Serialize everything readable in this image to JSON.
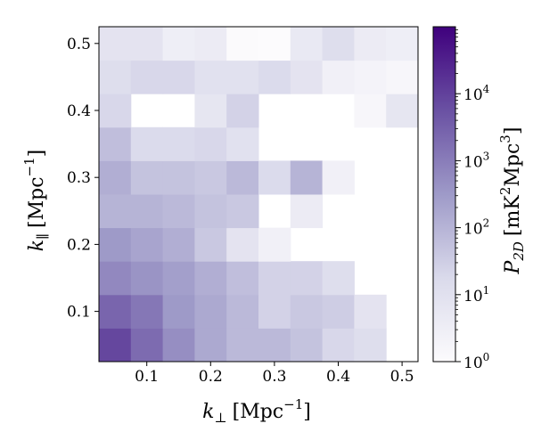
{
  "chart_data": {
    "type": "heatmap",
    "xlabel": {
      "symbol": "k",
      "subscript": "⊥",
      "unit": "[Mpc",
      "unit_exp": "−1",
      "unit_close": "]"
    },
    "ylabel": {
      "symbol": "k",
      "subscript": "∥",
      "unit": "[Mpc",
      "unit_exp": "−1",
      "unit_close": "]"
    },
    "colorbar_label": {
      "symbol": "P",
      "subscript": "2D",
      "unit": "[mK",
      "unit_exp1": "2",
      "unit_mid": "Mpc",
      "unit_exp2": "3",
      "unit_close": "]"
    },
    "x_ticks": [
      "0.1",
      "0.2",
      "0.3",
      "0.4",
      "0.5"
    ],
    "y_ticks": [
      "0.1",
      "0.2",
      "0.3",
      "0.4",
      "0.5"
    ],
    "colorbar_ticks": [
      {
        "base": "10",
        "exp": "0"
      },
      {
        "base": "10",
        "exp": "1"
      },
      {
        "base": "10",
        "exp": "2"
      },
      {
        "base": "10",
        "exp": "3"
      },
      {
        "base": "10",
        "exp": "4"
      }
    ],
    "xlim": [
      0.025,
      0.525
    ],
    "ylim": [
      0.025,
      0.525
    ],
    "bin_width": 0.05,
    "color_scale": "log",
    "colormap": "Purples",
    "clim_log10": [
      0,
      5
    ],
    "x_centers": [
      0.05,
      0.1,
      0.15,
      0.2,
      0.25,
      0.3,
      0.35,
      0.4,
      0.45,
      0.5
    ],
    "y_centers": [
      0.05,
      0.1,
      0.15,
      0.2,
      0.25,
      0.3,
      0.35,
      0.4,
      0.45,
      0.5
    ],
    "log10_values": [
      [
        3.9,
        3.3,
        2.7,
        2.2,
        1.9,
        1.9,
        1.7,
        1.3,
        1.1,
        null
      ],
      [
        3.4,
        3.1,
        2.5,
        2.2,
        1.9,
        1.4,
        1.6,
        1.5,
        0.9,
        null
      ],
      [
        2.8,
        2.6,
        2.4,
        2.1,
        1.8,
        1.4,
        1.4,
        1.1,
        null,
        null
      ],
      [
        2.5,
        2.3,
        2.1,
        1.6,
        0.9,
        0.4,
        null,
        null,
        null,
        null
      ],
      [
        2.0,
        2.0,
        1.9,
        1.7,
        1.6,
        null,
        0.6,
        null,
        null,
        null
      ],
      [
        2.1,
        1.7,
        1.7,
        1.6,
        1.9,
        1.2,
        2.0,
        0.4,
        null,
        null
      ],
      [
        1.8,
        1.2,
        1.2,
        1.3,
        1.0,
        null,
        null,
        null,
        null,
        null
      ],
      [
        1.3,
        null,
        null,
        0.8,
        1.4,
        null,
        null,
        null,
        0.2,
        0.8
      ],
      [
        1.1,
        1.3,
        1.3,
        1.0,
        1.0,
        1.2,
        0.9,
        0.4,
        0.3,
        0.2
      ],
      [
        0.9,
        0.9,
        0.5,
        0.6,
        0.05,
        0.0,
        0.7,
        1.1,
        0.6,
        0.5
      ]
    ]
  }
}
